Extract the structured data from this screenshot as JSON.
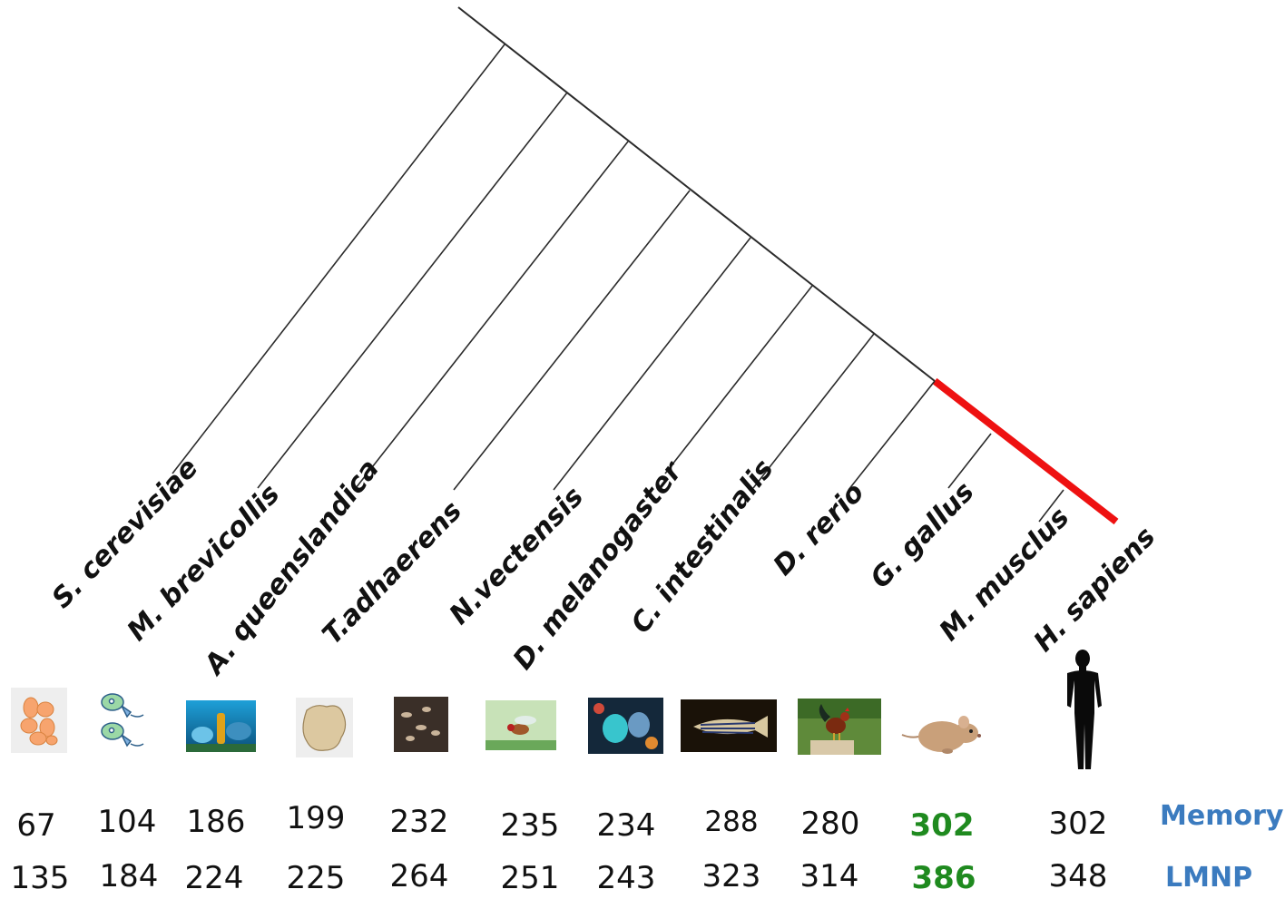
{
  "species": [
    {
      "name": "S. cerevisiae",
      "icon": "yeast-cells-icon",
      "memory": "67",
      "lmnp": "135",
      "highlight": false
    },
    {
      "name": "M. brevicollis",
      "icon": "choanoflagellate-icon",
      "memory": "104",
      "lmnp": "184",
      "highlight": false
    },
    {
      "name": "A. queenslandica",
      "icon": "sponge-photo-icon",
      "memory": "186",
      "lmnp": "224",
      "highlight": false
    },
    {
      "name": "T.adhaerens",
      "icon": "placozoan-icon",
      "memory": "199",
      "lmnp": "225",
      "highlight": false
    },
    {
      "name": "N.vectensis",
      "icon": "sea-anemone-photo-icon",
      "memory": "232",
      "lmnp": "264",
      "highlight": false
    },
    {
      "name": "D. melanogaster",
      "icon": "fruit-fly-photo-icon",
      "memory": "235",
      "lmnp": "251",
      "highlight": false
    },
    {
      "name": "C. intestinalis",
      "icon": "sea-squirt-photo-icon",
      "memory": "234",
      "lmnp": "243",
      "highlight": false
    },
    {
      "name": "D. rerio",
      "icon": "zebrafish-photo-icon",
      "memory": "288",
      "lmnp": "323",
      "highlight": false
    },
    {
      "name": "G. gallus",
      "icon": "rooster-photo-icon",
      "memory": "280",
      "lmnp": "314",
      "highlight": false
    },
    {
      "name": "M. musclus",
      "icon": "mouse-icon",
      "memory": "302",
      "lmnp": "386",
      "highlight": true
    },
    {
      "name": "H. sapiens",
      "icon": "human-silhouette-icon",
      "memory": "302",
      "lmnp": "348",
      "highlight": false
    }
  ],
  "row_labels": {
    "memory": "Memory",
    "lmnp": "LMNP"
  },
  "colors": {
    "spine": "#2b2b2b",
    "highlight_branch": "#ee1111",
    "highlight_number": "#1f8a1f",
    "row_label": "#3b7bbf"
  }
}
